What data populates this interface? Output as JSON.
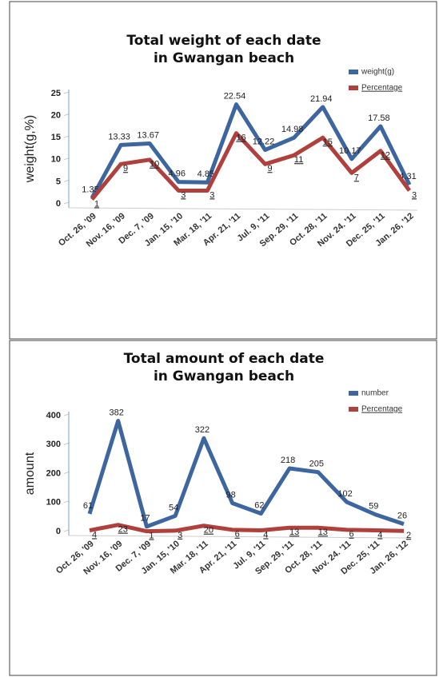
{
  "chart_data": [
    {
      "type": "line",
      "title": "Total weight of each date in Gwangan beach",
      "y_label": "weight(g,%)",
      "categories": [
        "Oct. 26, '09",
        "Nov. 16, '09",
        "Dec. 7, '09",
        "Jan. 15, '10",
        "Mar. 18, '11",
        "Apr. 21, '11",
        "Jul. 9, '11",
        "Sep. 29, '11",
        "Oct. 28, '11",
        "Nov. 24. '11",
        "Dec. 25, '11",
        "Jan. 26, '12"
      ],
      "series": [
        {
          "name": "weight(g)",
          "color": "#3d66a0",
          "values": [
            1.35,
            13.33,
            13.67,
            4.96,
            4.85,
            22.54,
            12.22,
            14.98,
            21.94,
            10.17,
            17.58,
            4.31
          ]
        },
        {
          "name": "Percentage",
          "color": "#b0403c",
          "values": [
            1,
            9,
            10,
            3,
            3,
            16,
            9,
            11,
            15,
            7,
            12,
            3
          ]
        }
      ],
      "ylim": [
        0,
        25
      ],
      "yticks": [
        0,
        5,
        10,
        15,
        20,
        25
      ],
      "legend": "top-right"
    },
    {
      "type": "line",
      "title": "Total amount of each date in Gwangan beach",
      "y_label": "amount",
      "categories": [
        "Oct. 26, '09",
        "Nov. 16, '09",
        "Dec. 7, '09",
        "Jan. 15, '10",
        "Mar. 18, '11",
        "Apr. 21, '11",
        "Jul. 9, '11",
        "Sep. 29, '11",
        "Oct. 28, '11",
        "Nov. 24. '11",
        "Dec. 25, '11",
        "Jan. 26, '12"
      ],
      "series": [
        {
          "name": "number",
          "color": "#3d66a0",
          "values": [
            61,
            382,
            17,
            54,
            322,
            98,
            62,
            218,
            205,
            102,
            59,
            26
          ]
        },
        {
          "name": "Percentage",
          "color": "#b0403c",
          "values": [
            4,
            23,
            1,
            3,
            20,
            6,
            4,
            13,
            13,
            6,
            4,
            2
          ]
        }
      ],
      "ylim": [
        0,
        400
      ],
      "yticks": [
        0,
        100,
        200,
        300,
        400
      ],
      "legend": "top-right"
    }
  ]
}
